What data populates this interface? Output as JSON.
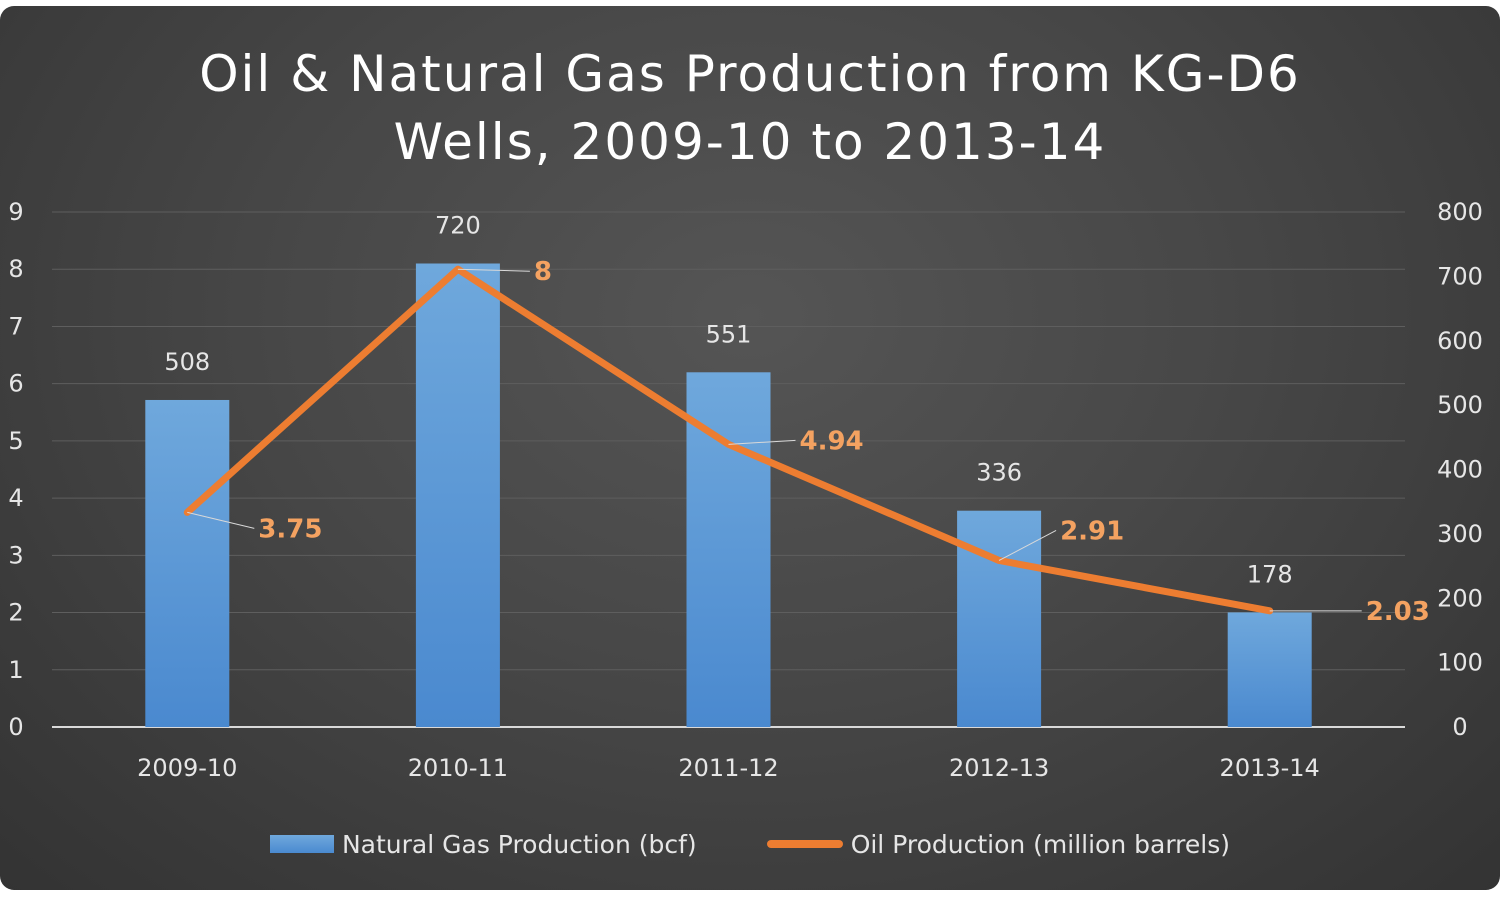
{
  "chart_data": {
    "type": "bar+line",
    "title_lines": [
      "Oil & Natural Gas Production from KG-D6",
      "Wells, 2009-10 to 2013-14"
    ],
    "categories": [
      "2009-10",
      "2010-11",
      "2011-12",
      "2012-13",
      "2013-14"
    ],
    "series": [
      {
        "name": "Natural Gas Production (bcf)",
        "kind": "bar",
        "axis": "right",
        "values": [
          508,
          720,
          551,
          336,
          178
        ],
        "value_labels": [
          "508",
          "720",
          "551",
          "336",
          "178"
        ],
        "color": "#5b9bd5"
      },
      {
        "name": "Oil Production (million barrels)",
        "kind": "line",
        "axis": "left",
        "values": [
          3.75,
          8,
          4.94,
          2.91,
          2.03
        ],
        "value_labels": [
          "3.75",
          "8",
          "4.94",
          "2.91",
          "2.03"
        ],
        "color": "#ed7d31",
        "label_color": "#f4a261"
      }
    ],
    "left_axis": {
      "min": 0,
      "max": 9,
      "ticks": [
        "0",
        "1",
        "2",
        "3",
        "4",
        "5",
        "6",
        "7",
        "8",
        "9"
      ]
    },
    "right_axis": {
      "min": 0,
      "max": 800,
      "ticks": [
        "0",
        "100",
        "200",
        "300",
        "400",
        "500",
        "600",
        "700",
        "800"
      ]
    },
    "grid": true,
    "legend_position": "bottom"
  }
}
